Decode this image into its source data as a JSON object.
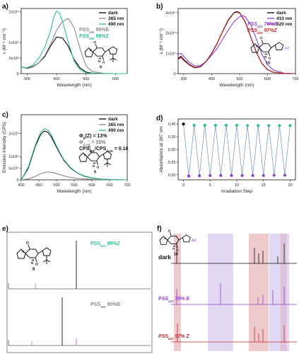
{
  "chart_data": [
    {
      "id": "a",
      "type": "line",
      "panel_label": "a)",
      "xlabel": "Wavelength (nm)",
      "ylabel": "ε (M⁻¹ cm⁻¹)",
      "xlim": [
        280,
        640
      ],
      "ylim": [
        0,
        21000
      ],
      "xticks": [
        "300",
        "400",
        "500",
        "600"
      ],
      "xtick_values": [
        300,
        400,
        500,
        600
      ],
      "yticks": [
        "0",
        "5x10³",
        "1x10⁴",
        "2x10⁴"
      ],
      "ytick_values": [
        0,
        5000,
        10000,
        20000
      ],
      "series": [
        {
          "name": "dark",
          "color": "#000000",
          "x": [
            280,
            300,
            320,
            340,
            360,
            380,
            400,
            420,
            440,
            460,
            480,
            500,
            520,
            560,
            600,
            640
          ],
          "y": [
            2200,
            1800,
            2300,
            3500,
            5500,
            9000,
            11800,
            11500,
            8800,
            4500,
            1800,
            500,
            150,
            30,
            0,
            0
          ]
        },
        {
          "name": "365 nm",
          "color": "#888888",
          "x": [
            280,
            300,
            320,
            340,
            360,
            380,
            400,
            420,
            440,
            460,
            480,
            500,
            520,
            560,
            600,
            640
          ],
          "y": [
            2300,
            1600,
            2200,
            3500,
            5800,
            9500,
            14000,
            16800,
            17800,
            14800,
            8000,
            2500,
            700,
            80,
            0,
            0
          ]
        },
        {
          "name": "490 nm",
          "color": "#2fbf8f",
          "x": [
            280,
            300,
            320,
            340,
            360,
            380,
            390,
            400,
            410,
            420,
            440,
            460,
            480,
            500,
            520,
            560,
            600,
            640
          ],
          "y": [
            2200,
            1900,
            2800,
            5000,
            8500,
            14000,
            18000,
            20200,
            19500,
            17000,
            10000,
            4000,
            1200,
            300,
            80,
            10,
            0,
            0
          ]
        }
      ],
      "pss": [
        {
          "prefix": "PSS",
          "sub": "365",
          "value": " 90%E",
          "color": "#888888"
        },
        {
          "prefix": "PSS",
          "sub": "490",
          "value": " 99%Z",
          "color": "#2fbf8f"
        }
      ],
      "compound": "9"
    },
    {
      "id": "b",
      "type": "line",
      "panel_label": "b)",
      "xlabel": "Wavelength (nm)",
      "ylabel": "ε (M⁻¹ cm⁻¹)",
      "xlim": [
        280,
        700
      ],
      "ylim": [
        0,
        32000
      ],
      "xticks": [
        "300",
        "400",
        "500",
        "600",
        "700"
      ],
      "xtick_values": [
        300,
        400,
        500,
        600,
        700
      ],
      "yticks": [
        "0",
        "1x10⁴",
        "2x10⁴",
        "3x10⁴"
      ],
      "ytick_values": [
        0,
        10000,
        20000,
        30000
      ],
      "series": [
        {
          "name": "dark",
          "color": "#000000",
          "x": [
            280,
            290,
            300,
            320,
            340,
            360,
            380,
            400,
            420,
            440,
            460,
            480,
            490,
            500,
            520,
            540,
            560,
            580,
            600,
            620,
            660,
            700
          ],
          "y": [
            7500,
            8500,
            7000,
            4500,
            3000,
            3500,
            6000,
            10000,
            15000,
            21000,
            26500,
            30000,
            30500,
            30000,
            25500,
            18000,
            10500,
            5000,
            2000,
            700,
            100,
            0
          ]
        },
        {
          "name": "410 nm",
          "color": "#8e3fd1",
          "x": [
            280,
            290,
            300,
            320,
            340,
            360,
            380,
            400,
            420,
            440,
            460,
            480,
            500,
            510,
            520,
            540,
            560,
            580,
            600,
            620,
            660,
            700
          ],
          "y": [
            9500,
            10000,
            8500,
            5500,
            3800,
            4000,
            6000,
            9000,
            12500,
            17000,
            21500,
            25500,
            28000,
            28500,
            28000,
            24000,
            17000,
            9500,
            4500,
            1800,
            200,
            0
          ]
        },
        {
          "name": "620 nm",
          "color": "#c0272d",
          "x": [
            280,
            290,
            300,
            320,
            340,
            360,
            380,
            400,
            420,
            440,
            460,
            480,
            490,
            500,
            520,
            540,
            560,
            580,
            600,
            620,
            660,
            700
          ],
          "y": [
            7000,
            8000,
            6500,
            4200,
            2800,
            3300,
            5800,
            9800,
            14800,
            20800,
            26200,
            29800,
            30200,
            29800,
            25200,
            17800,
            10300,
            4900,
            1900,
            650,
            100,
            0
          ]
        }
      ],
      "pss": [
        {
          "prefix": "PSS",
          "sub": "410",
          "value": " 70%E",
          "color": "#8e3fd1"
        },
        {
          "prefix": "PSS",
          "sub": "620",
          "value": " 97%Z",
          "color": "#c0272d"
        }
      ],
      "compound": "10",
      "jul_label": "Jul"
    },
    {
      "id": "c",
      "type": "line",
      "panel_label": "c)",
      "xlabel": "Wavelength (nm)",
      "ylabel": "Emission Intensity (CPS)",
      "xlim": [
        400,
        700
      ],
      "ylim": [
        0,
        2800000
      ],
      "xticks": [
        "400",
        "450",
        "500",
        "550",
        "600",
        "650",
        "700"
      ],
      "xtick_values": [
        400,
        450,
        500,
        550,
        600,
        650,
        700
      ],
      "yticks": [
        "0",
        "5x10⁵",
        "1x10⁶",
        "2x10⁶"
      ],
      "ytick_values": [
        0,
        500000,
        1000000,
        2000000
      ],
      "series": [
        {
          "name": "dark",
          "color": "#000000",
          "x": [
            400,
            420,
            440,
            455,
            465,
            475,
            485,
            500,
            520,
            540,
            560,
            580,
            600,
            630,
            660,
            700
          ],
          "y": [
            0,
            500000,
            1450000,
            1950000,
            2100000,
            2050000,
            1850000,
            1400000,
            850000,
            500000,
            280000,
            150000,
            80000,
            30000,
            10000,
            0
          ]
        },
        {
          "name": "365 nm",
          "color": "#888888",
          "x": [
            400,
            420,
            440,
            460,
            475,
            490,
            510,
            530,
            560,
            600,
            650,
            700
          ],
          "y": [
            0,
            40000,
            150000,
            290000,
            340000,
            310000,
            220000,
            130000,
            60000,
            20000,
            5000,
            0
          ]
        },
        {
          "name": "490 nm",
          "color": "#2fbf8f",
          "x": [
            400,
            420,
            440,
            455,
            465,
            475,
            485,
            500,
            520,
            540,
            560,
            580,
            600,
            630,
            660,
            700
          ],
          "y": [
            0,
            550000,
            1500000,
            2050000,
            2200000,
            2150000,
            1950000,
            1450000,
            880000,
            520000,
            290000,
            160000,
            85000,
            30000,
            10000,
            0
          ]
        }
      ],
      "annotations": [
        {
          "main": "Φ",
          "sub": "fl",
          "rest": "(Z) = 13%",
          "color": "#111111"
        },
        {
          "main": "Φ",
          "sub": "fl,rel",
          "rest": " = 33%",
          "color": "#777777"
        },
        {
          "main": "CPS",
          "sub": "365",
          "rest": "/CPS",
          "sub2": "dark",
          "rest2": " = 0.16",
          "color": "#111111"
        }
      ],
      "compound": "9"
    },
    {
      "id": "d",
      "type": "scatter",
      "panel_label": "d)",
      "xlabel": "Irradiation Step",
      "ylabel": "Absorbance at 397 nm",
      "xlim": [
        -1,
        21
      ],
      "ylim": [
        0.18,
        0.42
      ],
      "xticks": [
        "0",
        "5",
        "10",
        "15",
        "20"
      ],
      "xtick_values": [
        0,
        5,
        10,
        15,
        20
      ],
      "yticks": [
        "0,20",
        "0,25",
        "0,30",
        "0,35",
        "0,40"
      ],
      "ytick_values": [
        0.2,
        0.25,
        0.3,
        0.35,
        0.4
      ],
      "first_point": {
        "x": 0,
        "y": 0.4,
        "color": "#111111"
      },
      "high_color": "#2fbf8f",
      "low_color": "#8e3fd1",
      "x": [
        0,
        1,
        2,
        3,
        4,
        5,
        6,
        7,
        8,
        9,
        10,
        11,
        12,
        13,
        14,
        15,
        16,
        17,
        18,
        19,
        20
      ],
      "y": [
        0.4,
        0.195,
        0.395,
        0.196,
        0.395,
        0.197,
        0.395,
        0.197,
        0.395,
        0.197,
        0.395,
        0.197,
        0.394,
        0.197,
        0.394,
        0.197,
        0.394,
        0.198,
        0.394,
        0.198,
        0.394
      ]
    }
  ],
  "panel_e": {
    "label": "e)",
    "compound": "9",
    "upper_label": {
      "prefix": "PSS",
      "sub": "523",
      "value": " 99%Z",
      "color": "#2fbf8f"
    },
    "lower_label": {
      "prefix": "PSS",
      "sub": "365",
      "value": " 90%E",
      "color": "#888888"
    }
  },
  "panel_f": {
    "label": "f)",
    "compound": "10",
    "jul_label": "Jul",
    "traces": [
      {
        "prefix": "dark",
        "sub": "",
        "value": "",
        "color": "#111111"
      },
      {
        "prefix": "PSS",
        "sub": "410",
        "value": " 70% E",
        "color": "#8e3fd1"
      },
      {
        "prefix": "PSS",
        "sub": "620",
        "value": " 97% Z",
        "color": "#c0272d"
      }
    ]
  }
}
